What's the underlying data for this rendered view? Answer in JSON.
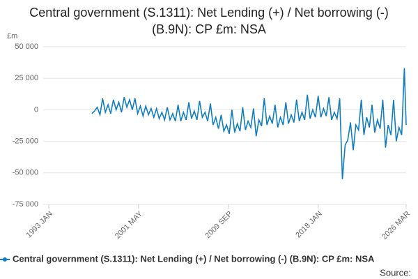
{
  "chart_data": {
    "type": "line",
    "title": "Central government (S.1311): Net Lending (+) / Net borrowing (-) (B.9N): CP £m: NSA",
    "y_label": "£m",
    "source": "Source:",
    "x": [
      "1997 JAN",
      "1997 APR",
      "1997 JUL",
      "1997 OCT",
      "1998 JAN",
      "1998 APR",
      "1998 JUL",
      "1998 OCT",
      "1999 JAN",
      "1999 APR",
      "1999 JUL",
      "1999 OCT",
      "2000 JAN",
      "2000 APR",
      "2000 JUL",
      "2000 OCT",
      "2001 JAN",
      "2001 APR",
      "2001 JUL",
      "2001 OCT",
      "2002 JAN",
      "2002 APR",
      "2002 JUL",
      "2002 OCT",
      "2003 JAN",
      "2003 APR",
      "2003 JUL",
      "2003 OCT",
      "2004 JAN",
      "2004 APR",
      "2004 JUL",
      "2004 OCT",
      "2005 JAN",
      "2005 APR",
      "2005 JUL",
      "2005 OCT",
      "2006 JAN",
      "2006 APR",
      "2006 JUL",
      "2006 OCT",
      "2007 JAN",
      "2007 APR",
      "2007 JUL",
      "2007 OCT",
      "2008 JAN",
      "2008 APR",
      "2008 JUL",
      "2008 OCT",
      "2009 JAN",
      "2009 APR",
      "2009 JUL",
      "2009 OCT",
      "2010 JAN",
      "2010 APR",
      "2010 JUL",
      "2010 OCT",
      "2011 JAN",
      "2011 APR",
      "2011 JUL",
      "2011 OCT",
      "2012 JAN",
      "2012 APR",
      "2012 JUL",
      "2012 OCT",
      "2013 JAN",
      "2013 APR",
      "2013 JUL",
      "2013 OCT",
      "2014 JAN",
      "2014 APR",
      "2014 JUL",
      "2014 OCT",
      "2015 JAN",
      "2015 APR",
      "2015 JUL",
      "2015 OCT",
      "2016 JAN",
      "2016 APR",
      "2016 JUL",
      "2016 OCT",
      "2017 JAN",
      "2017 APR",
      "2017 JUL",
      "2017 OCT",
      "2018 JAN",
      "2018 APR",
      "2018 JUL",
      "2018 OCT",
      "2019 JAN",
      "2019 APR",
      "2019 JUL",
      "2019 OCT",
      "2020 JAN",
      "2020 APR",
      "2020 JUL",
      "2020 OCT",
      "2021 JAN",
      "2021 APR",
      "2021 JUL",
      "2021 OCT",
      "2022 JAN",
      "2022 APR",
      "2022 JUL",
      "2022 OCT",
      "2023 JAN",
      "2023 APR",
      "2023 JUL",
      "2023 OCT",
      "2024 JAN",
      "2024 APR",
      "2024 JUL",
      "2024 OCT",
      "2025 JAN",
      "2025 APR",
      "2025 JUL",
      "2025 OCT",
      "2026 JAN",
      "2026 MAR"
    ],
    "series": [
      {
        "name": "Central government (S.1311): Net Lending (+) / Net borrowing (-) (B.9N): CP £m: NSA",
        "color": "#0f7dc2",
        "values": [
          -3000,
          -1000,
          2000,
          -4000,
          9000,
          -2000,
          4000,
          -3000,
          8000,
          0,
          6000,
          -2000,
          10000,
          2000,
          8000,
          0,
          9000,
          -3000,
          3000,
          -5000,
          3000,
          -4000,
          1000,
          -6000,
          1000,
          -7000,
          -2000,
          -8000,
          2000,
          -8000,
          -3000,
          -9000,
          4000,
          -9000,
          -2000,
          -8000,
          6000,
          -7000,
          -1000,
          -8000,
          7000,
          -6000,
          -2000,
          -9000,
          5000,
          -12000,
          -6000,
          -15000,
          -4000,
          -17000,
          -12000,
          -19000,
          0,
          -18000,
          -11000,
          -17000,
          2000,
          -16000,
          -9000,
          -14000,
          1000,
          -21000,
          -8000,
          -13000,
          9000,
          -12000,
          -5000,
          -11000,
          4000,
          -14000,
          -6000,
          -12000,
          6000,
          -11000,
          -4000,
          -10000,
          8000,
          -9000,
          -2000,
          -8000,
          12000,
          -7000,
          0,
          -6000,
          11000,
          -6000,
          1000,
          -5000,
          10000,
          -8000,
          -2000,
          -7000,
          9000,
          -55000,
          -28000,
          -24000,
          -10000,
          -32000,
          -12000,
          -16000,
          8000,
          -20000,
          -6000,
          -14000,
          4000,
          -18000,
          -8000,
          -15000,
          8000,
          -30000,
          -12000,
          -20000,
          8000,
          -25000,
          -14000,
          -20000,
          33000,
          -12000
        ]
      }
    ],
    "xlim": [
      "1993 JAN",
      "2026 MAR"
    ],
    "xticks": [
      "1993 JAN",
      "2001 MAY",
      "2009 SEP",
      "2018 JAN",
      "2026 MAR"
    ],
    "ylim": [
      -75000,
      50000
    ],
    "yticks": [
      {
        "value": -75000,
        "label": "-75 000"
      },
      {
        "value": -50000,
        "label": "-50 000"
      },
      {
        "value": -25000,
        "label": "-25 000"
      },
      0,
      {
        "value": 25000,
        "label": "25 000"
      },
      {
        "value": 50000,
        "label": "50 000"
      }
    ],
    "grid": true
  }
}
